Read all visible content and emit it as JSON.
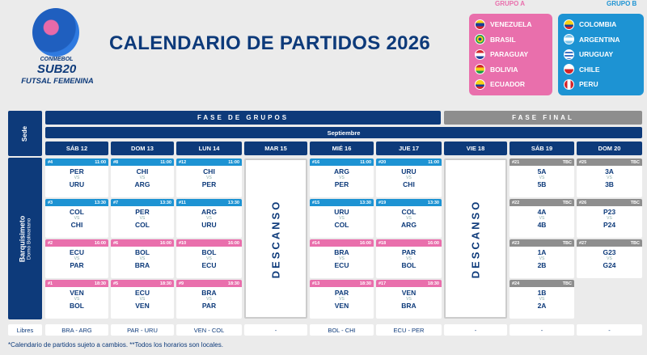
{
  "header": {
    "conmebol": "CONMEBOL",
    "sub20": "SUB20",
    "futsal": "FUTSAL FEMENINA",
    "title": "CALENDARIO DE PARTIDOS 2026"
  },
  "groups": {
    "a": {
      "label": "GRUPO A",
      "color": "#e96fac",
      "teams": [
        "VENEZUELA",
        "BRASIL",
        "PARAGUAY",
        "BOLIVIA",
        "ECUADOR"
      ]
    },
    "b": {
      "label": "GRUPO B",
      "color": "#1d93d3",
      "teams": [
        "COLOMBIA",
        "ARGENTINA",
        "URUGUAY",
        "CHILE",
        "PERU"
      ]
    }
  },
  "table": {
    "sede_label": "Sede",
    "fase_grupos": "FASE DE GRUPOS",
    "fase_final": "FASE FINAL",
    "month": "Septiembre",
    "venue_city": "Barquisimeto",
    "venue_name": "Domo Bolivariano",
    "days": [
      "SÁB 12",
      "DOM 13",
      "LUN 14",
      "MAR 15",
      "MIÉ 16",
      "JUE 17",
      "VIE 18",
      "SÁB 19",
      "DOM 20"
    ],
    "descanso": "DESCANSO",
    "vs": "VS",
    "libres_label": "Libres",
    "libres": [
      "BRA - ARG",
      "PAR - URU",
      "VEN - COL",
      "-",
      "BOL - CHI",
      "ECU - PER",
      "-",
      "-",
      "-"
    ],
    "colors": {
      "blue": "#1d93d3",
      "pink": "#e96fac",
      "gray": "#8e8e8e",
      "navy": "#0d3a7a"
    },
    "matches": [
      [
        {
          "num": "#4",
          "time": "11:00",
          "t1": "PER",
          "t2": "URU",
          "grp": "b"
        },
        {
          "num": "#3",
          "time": "13:30",
          "t1": "COL",
          "t2": "CHI",
          "grp": "b"
        },
        {
          "num": "#2",
          "time": "16:00",
          "t1": "ECU",
          "t2": "PAR",
          "grp": "a"
        },
        {
          "num": "#1",
          "time": "18:30",
          "t1": "VEN",
          "t2": "BOL",
          "grp": "a"
        }
      ],
      [
        {
          "num": "#8",
          "time": "11:00",
          "t1": "CHI",
          "t2": "ARG",
          "grp": "b"
        },
        {
          "num": "#7",
          "time": "13:30",
          "t1": "PER",
          "t2": "COL",
          "grp": "b"
        },
        {
          "num": "#6",
          "time": "16:00",
          "t1": "BOL",
          "t2": "BRA",
          "grp": "a"
        },
        {
          "num": "#5",
          "time": "18:30",
          "t1": "ECU",
          "t2": "VEN",
          "grp": "a"
        }
      ],
      [
        {
          "num": "#12",
          "time": "11:00",
          "t1": "CHI",
          "t2": "PER",
          "grp": "b"
        },
        {
          "num": "#11",
          "time": "13:30",
          "t1": "ARG",
          "t2": "URU",
          "grp": "b"
        },
        {
          "num": "#10",
          "time": "16:00",
          "t1": "BOL",
          "t2": "ECU",
          "grp": "a"
        },
        {
          "num": "#9",
          "time": "18:30",
          "t1": "BRA",
          "t2": "PAR",
          "grp": "a"
        }
      ],
      null,
      [
        {
          "num": "#16",
          "time": "11:00",
          "t1": "ARG",
          "t2": "PER",
          "grp": "b"
        },
        {
          "num": "#15",
          "time": "13:30",
          "t1": "URU",
          "t2": "COL",
          "grp": "b"
        },
        {
          "num": "#14",
          "time": "16:00",
          "t1": "BRA",
          "t2": "ECU",
          "grp": "a"
        },
        {
          "num": "#13",
          "time": "18:30",
          "t1": "PAR",
          "t2": "VEN",
          "grp": "a"
        }
      ],
      [
        {
          "num": "#20",
          "time": "11:00",
          "t1": "URU",
          "t2": "CHI",
          "grp": "b"
        },
        {
          "num": "#19",
          "time": "13:30",
          "t1": "COL",
          "t2": "ARG",
          "grp": "b"
        },
        {
          "num": "#18",
          "time": "16:00",
          "t1": "PAR",
          "t2": "BOL",
          "grp": "a"
        },
        {
          "num": "#17",
          "time": "18:30",
          "t1": "VEN",
          "t2": "BRA",
          "grp": "a"
        }
      ],
      null,
      [
        {
          "num": "#21",
          "time": "TBC",
          "t1": "5A",
          "t2": "5B",
          "grp": "f"
        },
        {
          "num": "#22",
          "time": "TBC",
          "t1": "4A",
          "t2": "4B",
          "grp": "f"
        },
        {
          "num": "#23",
          "time": "TBC",
          "t1": "1A",
          "t2": "2B",
          "grp": "f"
        },
        {
          "num": "#24",
          "time": "TBC",
          "t1": "1B",
          "t2": "2A",
          "grp": "f"
        }
      ],
      [
        {
          "num": "#25",
          "time": "TBC",
          "t1": "3A",
          "t2": "3B",
          "grp": "f"
        },
        {
          "num": "#26",
          "time": "TBC",
          "t1": "P23",
          "t2": "P24",
          "grp": "f"
        },
        {
          "num": "#27",
          "time": "TBC",
          "t1": "G23",
          "t2": "G24",
          "grp": "f"
        },
        null
      ]
    ]
  },
  "footer": "*Calendario de partidos sujeto a cambios. **Todos los horarios son locales."
}
